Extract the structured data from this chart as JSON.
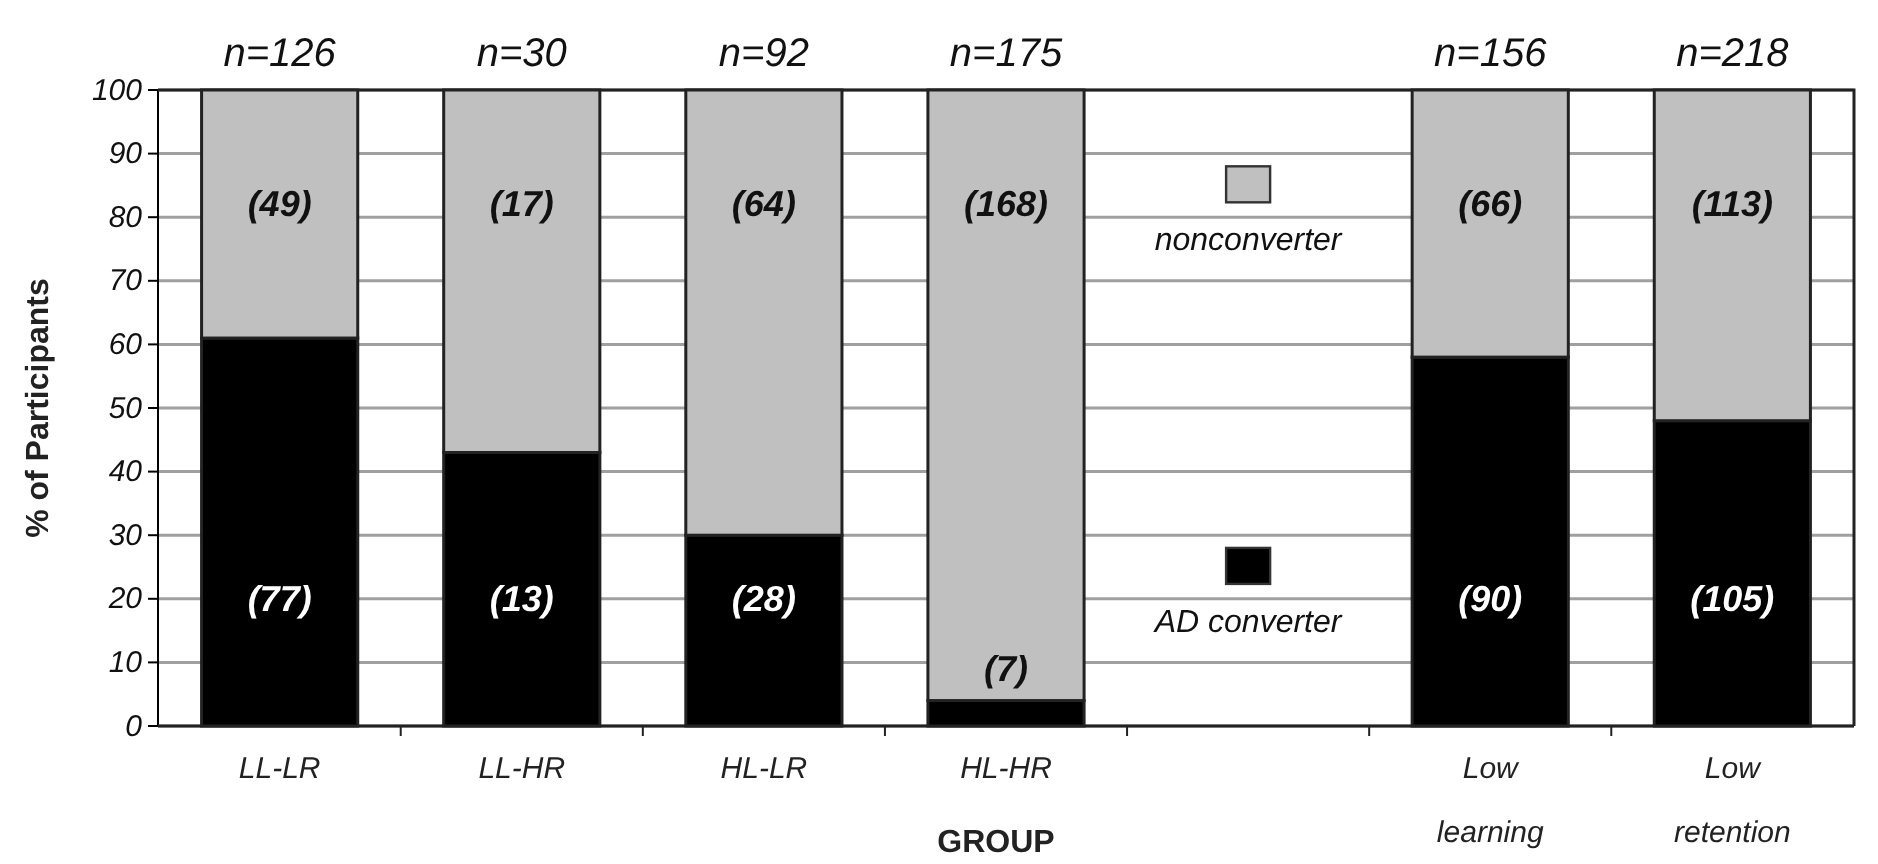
{
  "chart_data": {
    "type": "bar",
    "stacked": true,
    "xlabel": "GROUP",
    "ylabel": "% of Participants",
    "categories": [
      "LL-LR",
      "LL-HR",
      "HL-LR",
      "HL-HR",
      null,
      "Low learning",
      "Low retention"
    ],
    "series": [
      {
        "name": "AD converter",
        "color": "#000000",
        "values": [
          61,
          43,
          30,
          4,
          null,
          58,
          48
        ]
      },
      {
        "name": "nonconverter",
        "color": "#c0c0c0",
        "values": [
          39,
          57,
          70,
          96,
          null,
          42,
          52
        ]
      }
    ],
    "annotations": [
      "n=126",
      "n=30",
      "n=92",
      "n=175",
      "n=156",
      "n=218",
      "(77)",
      "(13)",
      "(28)",
      "(7)",
      "(90)",
      "(105)",
      "(49)",
      "(17)",
      "(64)",
      "(168)",
      "(66)",
      "(113)"
    ],
    "ylim": [
      0,
      100
    ],
    "yticks": [
      0,
      10,
      20,
      30,
      40,
      50,
      60,
      70,
      80,
      90,
      100
    ],
    "grid": "y",
    "legend": "center"
  }
}
